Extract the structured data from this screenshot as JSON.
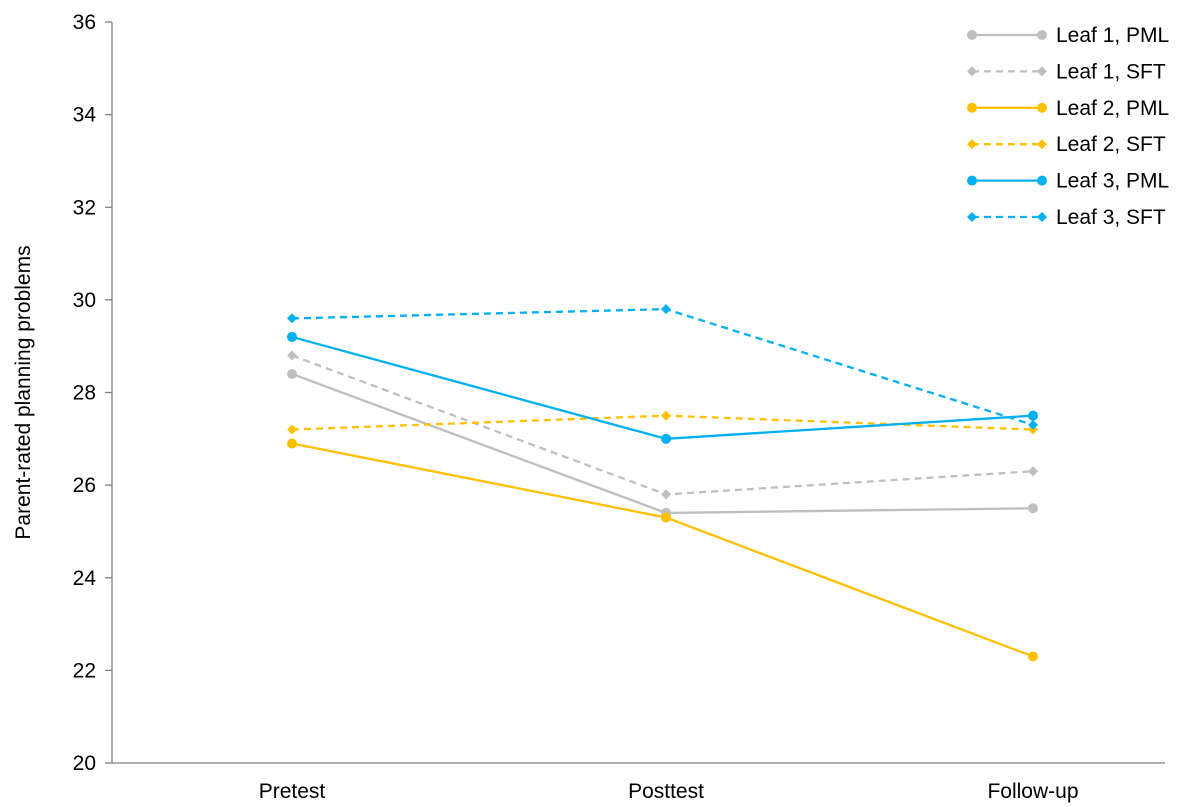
{
  "chart_data": {
    "type": "line",
    "title": "",
    "xlabel": "",
    "ylabel": "Parent-rated planning problems",
    "categories": [
      "Pretest",
      "Posttest",
      "Follow-up"
    ],
    "ylim": [
      20,
      36
    ],
    "yticks": [
      20,
      22,
      24,
      26,
      28,
      30,
      32,
      34,
      36
    ],
    "grid": false,
    "legend_position": "top-right",
    "series": [
      {
        "name": "Leaf 1, PML",
        "values": [
          28.4,
          25.4,
          25.5
        ],
        "color": "#BFBFBF",
        "dash": "solid",
        "marker": "circle"
      },
      {
        "name": "Leaf 1, SFT",
        "values": [
          28.8,
          25.8,
          26.3
        ],
        "color": "#BFBFBF",
        "dash": "dashed",
        "marker": "diamond"
      },
      {
        "name": "Leaf 2, PML",
        "values": [
          26.9,
          25.3,
          22.3
        ],
        "color": "#FFC000",
        "dash": "solid",
        "marker": "circle"
      },
      {
        "name": "Leaf 2, SFT",
        "values": [
          27.2,
          27.5,
          27.2
        ],
        "color": "#FFC000",
        "dash": "dashed",
        "marker": "diamond"
      },
      {
        "name": "Leaf 3, PML",
        "values": [
          29.2,
          27.0,
          27.5
        ],
        "color": "#00B0F0",
        "dash": "solid",
        "marker": "circle"
      },
      {
        "name": "Leaf 3, SFT",
        "values": [
          29.6,
          29.8,
          27.3
        ],
        "color": "#00B0F0",
        "dash": "dashed",
        "marker": "diamond"
      }
    ]
  }
}
